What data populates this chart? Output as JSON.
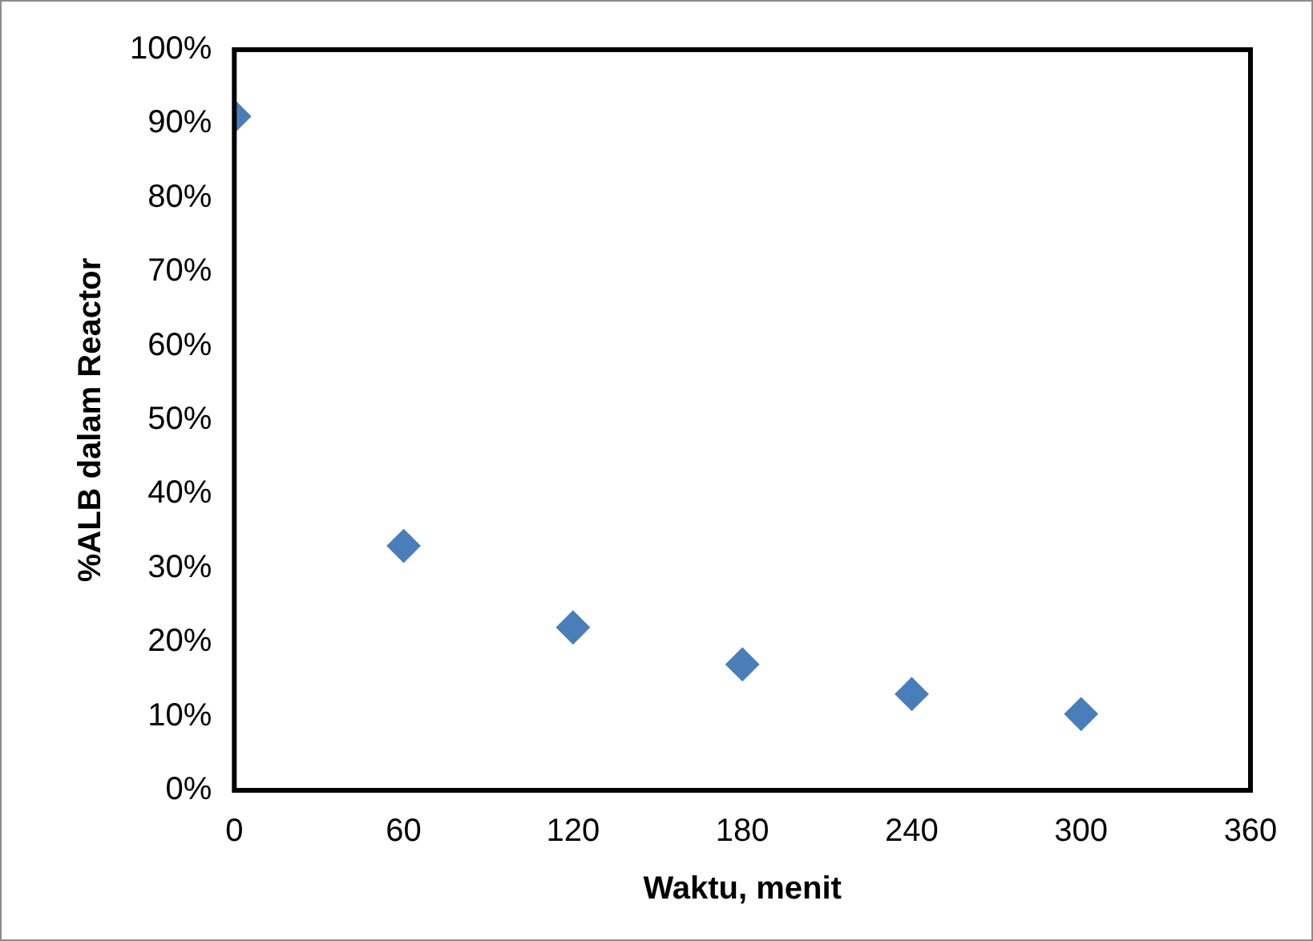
{
  "chart_data": {
    "type": "scatter",
    "xlabel": "Waktu, menit",
    "ylabel": "%ALB dalam Reactor",
    "x": [
      0,
      60,
      120,
      180,
      240,
      300
    ],
    "series": [
      {
        "color": "#4a7ebb",
        "values": [
          91,
          33,
          22,
          17,
          13,
          10.3
        ]
      }
    ],
    "xlim": [
      0,
      360
    ],
    "xticks": [
      0,
      60,
      120,
      180,
      240,
      300,
      360
    ],
    "ylim": [
      0,
      100
    ],
    "yticks": [
      {
        "value": 0,
        "label": "0%"
      },
      {
        "value": 10,
        "label": "10%"
      },
      {
        "value": 20,
        "label": "20%"
      },
      {
        "value": 30,
        "label": "30%"
      },
      {
        "value": 40,
        "label": "40%"
      },
      {
        "value": 50,
        "label": "50%"
      },
      {
        "value": 60,
        "label": "60%"
      },
      {
        "value": 70,
        "label": "70%"
      },
      {
        "value": 80,
        "label": "80%"
      },
      {
        "value": 90,
        "label": "90%"
      },
      {
        "value": 100,
        "label": "100%"
      }
    ],
    "marker": "diamond",
    "grid": false,
    "legend": false
  }
}
